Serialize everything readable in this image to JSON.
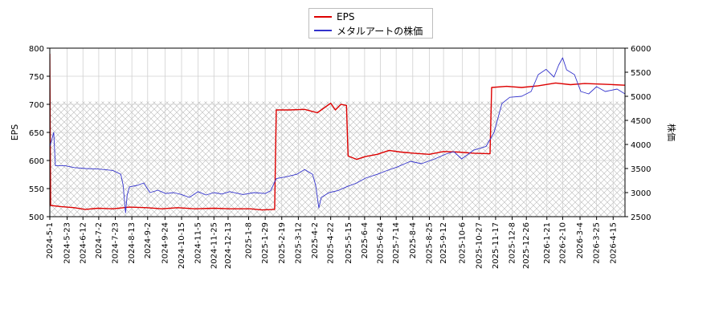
{
  "chart_data": {
    "type": "line",
    "title": "",
    "legend": {
      "placement": "top-center",
      "entries": [
        {
          "name": "EPS",
          "color": "#dd0000"
        },
        {
          "name": "メタルアートの株価",
          "color": "#3333cc"
        }
      ]
    },
    "ylabel_left": "EPS",
    "ylabel_right": "株価",
    "ylim_left": [
      500,
      800
    ],
    "ylim_right": [
      2500,
      6000
    ],
    "yticks_left": [
      500,
      550,
      600,
      650,
      700,
      750,
      800
    ],
    "yticks_right": [
      2500,
      3000,
      3500,
      4000,
      4500,
      5000,
      5500,
      6000
    ],
    "xlim": [
      "2024-05-01",
      "2026-04-30"
    ],
    "xticks": [
      "2024-5-1",
      "2024-5-23",
      "2024-6-12",
      "2024-7-2",
      "2024-7-23",
      "2024-8-13",
      "2024-9-2",
      "2024-9-24",
      "2024-10-15",
      "2024-11-5",
      "2024-11-25",
      "2024-12-13",
      "2025-1-8",
      "2025-1-29",
      "2025-2-19",
      "2025-3-12",
      "2025-4-2",
      "2025-4-22",
      "2025-5-15",
      "2025-6-4",
      "2025-6-24",
      "2025-7-14",
      "2025-8-4",
      "2025-8-25",
      "2025-9-12",
      "2025-10-6",
      "2025-10-27",
      "2025-11-17",
      "2025-12-8",
      "2025-12-26",
      "2026-1-21",
      "2026-2-10",
      "2026-3-4",
      "2026-3-25",
      "2026-4-15"
    ],
    "hatch_band_left": [
      500,
      705
    ],
    "grid": true,
    "series": [
      {
        "name": "EPS",
        "axis": "left",
        "color": "#dd0000",
        "points": [
          [
            "2024-05-01",
            790
          ],
          [
            "2024-05-02",
            520
          ],
          [
            "2024-05-15",
            518
          ],
          [
            "2024-06-01",
            516
          ],
          [
            "2024-06-15",
            513
          ],
          [
            "2024-07-01",
            515
          ],
          [
            "2024-07-20",
            514
          ],
          [
            "2024-08-10",
            517
          ],
          [
            "2024-09-01",
            516
          ],
          [
            "2024-09-20",
            514
          ],
          [
            "2024-10-10",
            516
          ],
          [
            "2024-11-01",
            514
          ],
          [
            "2024-11-25",
            515
          ],
          [
            "2024-12-15",
            514
          ],
          [
            "2025-01-10",
            514
          ],
          [
            "2025-01-25",
            512
          ],
          [
            "2025-02-10",
            513
          ],
          [
            "2025-02-12",
            690
          ],
          [
            "2025-03-01",
            690
          ],
          [
            "2025-03-20",
            691
          ],
          [
            "2025-04-05",
            685
          ],
          [
            "2025-04-15",
            695
          ],
          [
            "2025-04-22",
            702
          ],
          [
            "2025-04-28",
            690
          ],
          [
            "2025-05-05",
            700
          ],
          [
            "2025-05-12",
            698
          ],
          [
            "2025-05-14",
            608
          ],
          [
            "2025-05-25",
            602
          ],
          [
            "2025-06-05",
            607
          ],
          [
            "2025-06-20",
            611
          ],
          [
            "2025-07-05",
            618
          ],
          [
            "2025-07-20",
            615
          ],
          [
            "2025-08-05",
            613
          ],
          [
            "2025-08-25",
            611
          ],
          [
            "2025-09-12",
            616
          ],
          [
            "2025-10-01",
            615
          ],
          [
            "2025-10-20",
            613
          ],
          [
            "2025-11-10",
            612
          ],
          [
            "2025-11-12",
            730
          ],
          [
            "2025-12-01",
            732
          ],
          [
            "2025-12-20",
            730
          ],
          [
            "2026-01-10",
            733
          ],
          [
            "2026-02-01",
            738
          ],
          [
            "2026-02-20",
            735
          ],
          [
            "2026-03-10",
            737
          ],
          [
            "2026-03-30",
            736
          ],
          [
            "2026-04-15",
            735
          ],
          [
            "2026-04-30",
            734
          ]
        ]
      },
      {
        "name": "メタルアートの株価",
        "axis": "right",
        "color": "#3333cc",
        "points": [
          [
            "2024-05-01",
            3950
          ],
          [
            "2024-05-06",
            4250
          ],
          [
            "2024-05-08",
            3560
          ],
          [
            "2024-05-20",
            3560
          ],
          [
            "2024-06-01",
            3520
          ],
          [
            "2024-06-15",
            3500
          ],
          [
            "2024-07-01",
            3490
          ],
          [
            "2024-07-20",
            3460
          ],
          [
            "2024-07-30",
            3380
          ],
          [
            "2024-08-02",
            3150
          ],
          [
            "2024-08-05",
            2580
          ],
          [
            "2024-08-07",
            2950
          ],
          [
            "2024-08-10",
            3120
          ],
          [
            "2024-08-20",
            3150
          ],
          [
            "2024-08-28",
            3200
          ],
          [
            "2024-09-05",
            3000
          ],
          [
            "2024-09-15",
            3050
          ],
          [
            "2024-09-25",
            2980
          ],
          [
            "2024-10-05",
            3000
          ],
          [
            "2024-10-15",
            2960
          ],
          [
            "2024-10-25",
            2900
          ],
          [
            "2024-11-05",
            3020
          ],
          [
            "2024-11-15",
            2950
          ],
          [
            "2024-11-25",
            3000
          ],
          [
            "2024-12-05",
            2970
          ],
          [
            "2024-12-15",
            3020
          ],
          [
            "2025-01-01",
            2960
          ],
          [
            "2025-01-15",
            3000
          ],
          [
            "2025-01-29",
            2980
          ],
          [
            "2025-02-05",
            3040
          ],
          [
            "2025-02-12",
            3290
          ],
          [
            "2025-02-25",
            3330
          ],
          [
            "2025-03-10",
            3380
          ],
          [
            "2025-03-20",
            3480
          ],
          [
            "2025-03-30",
            3380
          ],
          [
            "2025-04-03",
            3150
          ],
          [
            "2025-04-07",
            2680
          ],
          [
            "2025-04-10",
            2900
          ],
          [
            "2025-04-20",
            3000
          ],
          [
            "2025-05-01",
            3040
          ],
          [
            "2025-05-12",
            3120
          ],
          [
            "2025-05-25",
            3200
          ],
          [
            "2025-06-05",
            3300
          ],
          [
            "2025-06-20",
            3380
          ],
          [
            "2025-07-01",
            3450
          ],
          [
            "2025-07-15",
            3530
          ],
          [
            "2025-08-01",
            3650
          ],
          [
            "2025-08-15",
            3600
          ],
          [
            "2025-09-01",
            3700
          ],
          [
            "2025-09-15",
            3800
          ],
          [
            "2025-09-25",
            3850
          ],
          [
            "2025-10-05",
            3700
          ],
          [
            "2025-10-20",
            3880
          ],
          [
            "2025-11-05",
            3960
          ],
          [
            "2025-11-15",
            4250
          ],
          [
            "2025-11-25",
            4850
          ],
          [
            "2025-12-05",
            4980
          ],
          [
            "2025-12-20",
            5000
          ],
          [
            "2026-01-01",
            5100
          ],
          [
            "2026-01-10",
            5450
          ],
          [
            "2026-01-20",
            5560
          ],
          [
            "2026-01-30",
            5400
          ],
          [
            "2026-02-05",
            5650
          ],
          [
            "2026-02-10",
            5800
          ],
          [
            "2026-02-15",
            5550
          ],
          [
            "2026-02-25",
            5450
          ],
          [
            "2026-03-05",
            5100
          ],
          [
            "2026-03-15",
            5050
          ],
          [
            "2026-03-25",
            5200
          ],
          [
            "2026-04-05",
            5100
          ],
          [
            "2026-04-20",
            5150
          ],
          [
            "2026-04-30",
            5050
          ]
        ]
      }
    ]
  }
}
